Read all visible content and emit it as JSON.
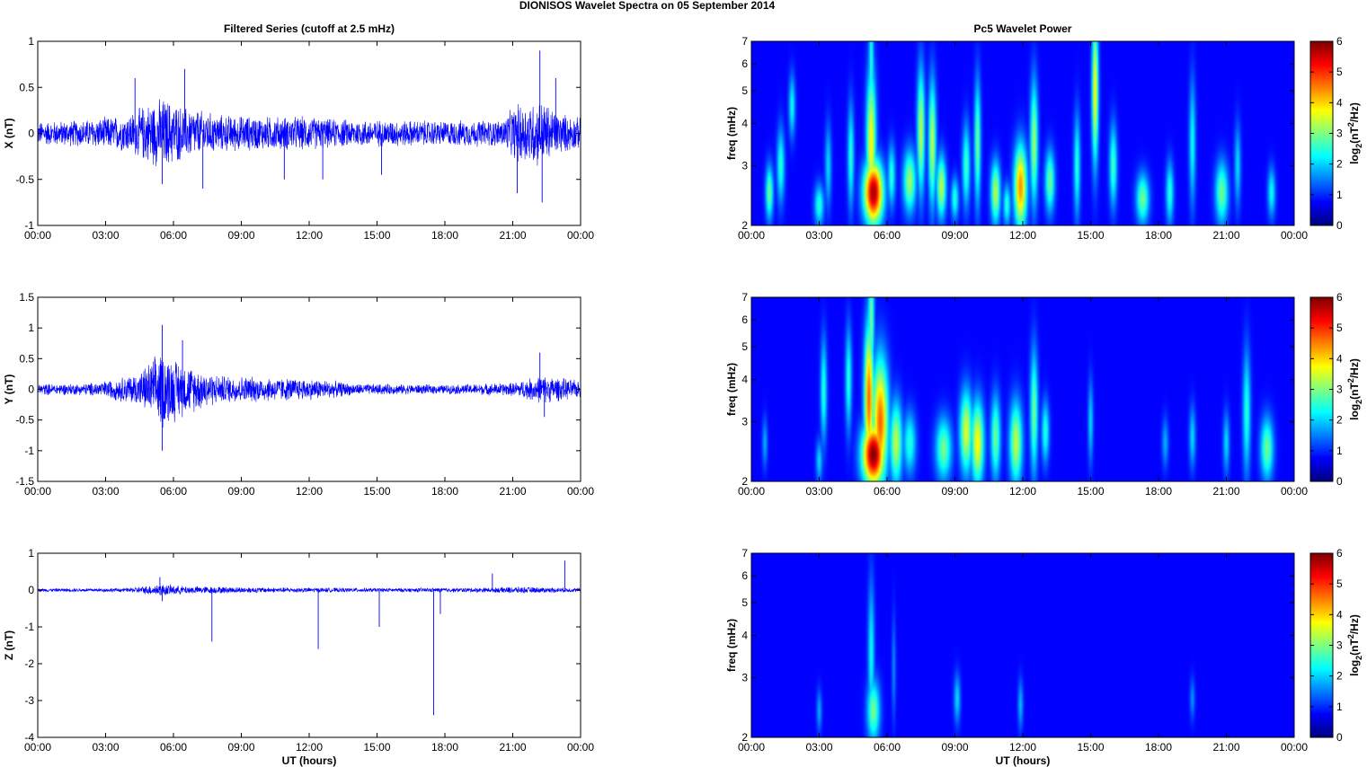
{
  "figure": {
    "title": "DIONISOS Wavelet Spectra on 05 September 2014",
    "left_column_title": "Filtered Series (cutoff at 2.5 mHz)",
    "right_column_title": "Pc5 Wavelet Power",
    "xlabel": "UT (hours)"
  },
  "chart_data": [
    {
      "type": "line",
      "name": "x-series",
      "ylabel": "X (nT)",
      "xlim": [
        0,
        24
      ],
      "ylim": [
        -1,
        1
      ],
      "xticks": [
        "00:00",
        "03:00",
        "06:00",
        "09:00",
        "12:00",
        "15:00",
        "18:00",
        "21:00",
        "00:00"
      ],
      "yticks": [
        -1,
        -0.5,
        0,
        0.5,
        1
      ],
      "color": "#0000ff",
      "envelope": [
        {
          "x": 0,
          "amp": 0.14
        },
        {
          "x": 2,
          "amp": 0.16
        },
        {
          "x": 4,
          "amp": 0.22
        },
        {
          "x": 5,
          "amp": 0.38
        },
        {
          "x": 5.6,
          "amp": 0.42
        },
        {
          "x": 6.3,
          "amp": 0.33
        },
        {
          "x": 8,
          "amp": 0.22
        },
        {
          "x": 10,
          "amp": 0.2
        },
        {
          "x": 12,
          "amp": 0.2
        },
        {
          "x": 13,
          "amp": 0.17
        },
        {
          "x": 15,
          "amp": 0.16
        },
        {
          "x": 18,
          "amp": 0.15
        },
        {
          "x": 20.5,
          "amp": 0.16
        },
        {
          "x": 21.2,
          "amp": 0.35
        },
        {
          "x": 22.3,
          "amp": 0.4
        },
        {
          "x": 23,
          "amp": 0.25
        },
        {
          "x": 24,
          "amp": 0.18
        }
      ],
      "spikes": [
        {
          "x": 4.3,
          "y": 0.6
        },
        {
          "x": 5.5,
          "y": -0.55
        },
        {
          "x": 6.5,
          "y": 0.7
        },
        {
          "x": 7.3,
          "y": -0.6
        },
        {
          "x": 10.9,
          "y": -0.5
        },
        {
          "x": 12.6,
          "y": -0.5
        },
        {
          "x": 15.2,
          "y": -0.45
        },
        {
          "x": 21.2,
          "y": -0.65
        },
        {
          "x": 22.2,
          "y": 0.9
        },
        {
          "x": 22.3,
          "y": -0.75
        },
        {
          "x": 22.9,
          "y": 0.6
        }
      ]
    },
    {
      "type": "line",
      "name": "y-series",
      "ylabel": "Y (nT)",
      "xlim": [
        0,
        24
      ],
      "ylim": [
        -1.5,
        1.5
      ],
      "xticks": [
        "00:00",
        "03:00",
        "06:00",
        "09:00",
        "12:00",
        "15:00",
        "18:00",
        "21:00",
        "00:00"
      ],
      "yticks": [
        -1.5,
        -1,
        -0.5,
        0,
        0.5,
        1,
        1.5
      ],
      "color": "#0000ff",
      "envelope": [
        {
          "x": 0,
          "amp": 0.1
        },
        {
          "x": 2,
          "amp": 0.1
        },
        {
          "x": 3,
          "amp": 0.15
        },
        {
          "x": 4.5,
          "amp": 0.3
        },
        {
          "x": 5.5,
          "amp": 0.7
        },
        {
          "x": 6.5,
          "amp": 0.45
        },
        {
          "x": 8,
          "amp": 0.25
        },
        {
          "x": 10,
          "amp": 0.22
        },
        {
          "x": 12.5,
          "amp": 0.18
        },
        {
          "x": 14,
          "amp": 0.1
        },
        {
          "x": 18,
          "amp": 0.08
        },
        {
          "x": 21,
          "amp": 0.12
        },
        {
          "x": 22.3,
          "amp": 0.25
        },
        {
          "x": 24,
          "amp": 0.15
        }
      ],
      "spikes": [
        {
          "x": 5.5,
          "y": 1.05
        },
        {
          "x": 5.5,
          "y": -1.0
        },
        {
          "x": 6.4,
          "y": 0.8
        },
        {
          "x": 22.2,
          "y": 0.6
        },
        {
          "x": 22.4,
          "y": -0.45
        }
      ]
    },
    {
      "type": "line",
      "name": "z-series",
      "ylabel": "Z (nT)",
      "xlim": [
        0,
        24
      ],
      "ylim": [
        -4,
        1
      ],
      "xticks": [
        "00:00",
        "03:00",
        "06:00",
        "09:00",
        "12:00",
        "15:00",
        "18:00",
        "21:00",
        "00:00"
      ],
      "yticks": [
        -4,
        -3,
        -2,
        -1,
        0,
        1
      ],
      "color": "#0000ff",
      "envelope": [
        {
          "x": 0,
          "amp": 0.05
        },
        {
          "x": 4,
          "amp": 0.06
        },
        {
          "x": 5.4,
          "amp": 0.18
        },
        {
          "x": 6.5,
          "amp": 0.12
        },
        {
          "x": 10,
          "amp": 0.08
        },
        {
          "x": 15,
          "amp": 0.06
        },
        {
          "x": 20,
          "amp": 0.07
        },
        {
          "x": 21,
          "amp": 0.1
        },
        {
          "x": 24,
          "amp": 0.06
        }
      ],
      "spikes": [
        {
          "x": 5.4,
          "y": 0.35
        },
        {
          "x": 5.5,
          "y": -0.3
        },
        {
          "x": 7.7,
          "y": -1.4
        },
        {
          "x": 12.4,
          "y": -1.6
        },
        {
          "x": 15.1,
          "y": -1.0
        },
        {
          "x": 17.5,
          "y": -3.4
        },
        {
          "x": 17.8,
          "y": -0.65
        },
        {
          "x": 20.1,
          "y": 0.45
        },
        {
          "x": 23.3,
          "y": 0.8
        }
      ]
    },
    {
      "type": "heatmap",
      "name": "x-wavelet",
      "ylabel": "freq (mHz)",
      "xlim": [
        0,
        24
      ],
      "ylim": [
        2,
        7
      ],
      "yscale": "log",
      "xticks": [
        "00:00",
        "03:00",
        "06:00",
        "09:00",
        "12:00",
        "15:00",
        "18:00",
        "21:00",
        "00:00"
      ],
      "yticks": [
        2,
        3,
        4,
        5,
        6,
        7
      ],
      "colorbar": {
        "label": "log2(nT^2/Hz)",
        "range": [
          0,
          6
        ],
        "ticks": [
          0,
          1,
          2,
          3,
          4,
          5,
          6
        ],
        "colormap": "jet"
      },
      "blobs": [
        {
          "t": 0.8,
          "f": 2.5,
          "w": 0.12,
          "h": 0.13,
          "p": 2.5
        },
        {
          "t": 1.3,
          "f": 3.0,
          "w": 0.12,
          "h": 0.18,
          "p": 2.0
        },
        {
          "t": 1.8,
          "f": 4.5,
          "w": 0.1,
          "h": 0.15,
          "p": 1.8
        },
        {
          "t": 3.0,
          "f": 2.3,
          "w": 0.15,
          "h": 0.1,
          "p": 2.0
        },
        {
          "t": 3.4,
          "f": 3.0,
          "w": 0.1,
          "h": 0.2,
          "p": 1.5
        },
        {
          "t": 4.4,
          "f": 3.2,
          "w": 0.1,
          "h": 0.25,
          "p": 2.0
        },
        {
          "t": 5.4,
          "f": 2.5,
          "w": 0.3,
          "h": 0.15,
          "p": 5.8
        },
        {
          "t": 5.3,
          "f": 3.5,
          "w": 0.15,
          "h": 0.35,
          "p": 3.5
        },
        {
          "t": 5.3,
          "f": 6.0,
          "w": 0.08,
          "h": 0.3,
          "p": 2.0
        },
        {
          "t": 6.2,
          "f": 2.8,
          "w": 0.12,
          "h": 0.15,
          "p": 2.0
        },
        {
          "t": 7.0,
          "f": 2.7,
          "w": 0.2,
          "h": 0.15,
          "p": 2.8
        },
        {
          "t": 7.5,
          "f": 3.8,
          "w": 0.12,
          "h": 0.3,
          "p": 3.0
        },
        {
          "t": 8.0,
          "f": 3.5,
          "w": 0.12,
          "h": 0.3,
          "p": 3.0
        },
        {
          "t": 8.4,
          "f": 2.6,
          "w": 0.15,
          "h": 0.15,
          "p": 3.0
        },
        {
          "t": 9.0,
          "f": 2.4,
          "w": 0.12,
          "h": 0.1,
          "p": 2.0
        },
        {
          "t": 9.5,
          "f": 3.0,
          "w": 0.12,
          "h": 0.2,
          "p": 2.2
        },
        {
          "t": 10.0,
          "f": 3.5,
          "w": 0.1,
          "h": 0.3,
          "p": 2.5
        },
        {
          "t": 10.8,
          "f": 2.5,
          "w": 0.15,
          "h": 0.15,
          "p": 3.0
        },
        {
          "t": 11.3,
          "f": 2.3,
          "w": 0.12,
          "h": 0.1,
          "p": 2.0
        },
        {
          "t": 11.9,
          "f": 2.6,
          "w": 0.2,
          "h": 0.2,
          "p": 4.2
        },
        {
          "t": 12.5,
          "f": 3.5,
          "w": 0.12,
          "h": 0.3,
          "p": 2.8
        },
        {
          "t": 13.2,
          "f": 2.7,
          "w": 0.15,
          "h": 0.15,
          "p": 2.5
        },
        {
          "t": 14.4,
          "f": 3.0,
          "w": 0.1,
          "h": 0.25,
          "p": 2.0
        },
        {
          "t": 15.2,
          "f": 5.0,
          "w": 0.1,
          "h": 0.35,
          "p": 3.5
        },
        {
          "t": 16.0,
          "f": 3.0,
          "w": 0.12,
          "h": 0.2,
          "p": 2.2
        },
        {
          "t": 17.3,
          "f": 2.4,
          "w": 0.2,
          "h": 0.12,
          "p": 2.5
        },
        {
          "t": 18.5,
          "f": 2.5,
          "w": 0.12,
          "h": 0.15,
          "p": 2.0
        },
        {
          "t": 19.5,
          "f": 3.5,
          "w": 0.1,
          "h": 0.3,
          "p": 1.8
        },
        {
          "t": 20.8,
          "f": 2.5,
          "w": 0.2,
          "h": 0.15,
          "p": 2.5
        },
        {
          "t": 21.5,
          "f": 3.0,
          "w": 0.1,
          "h": 0.2,
          "p": 1.5
        },
        {
          "t": 23.0,
          "f": 2.5,
          "w": 0.12,
          "h": 0.12,
          "p": 1.8
        }
      ]
    },
    {
      "type": "heatmap",
      "name": "y-wavelet",
      "ylabel": "freq (mHz)",
      "xlim": [
        0,
        24
      ],
      "ylim": [
        2,
        7
      ],
      "yscale": "log",
      "xticks": [
        "00:00",
        "03:00",
        "06:00",
        "09:00",
        "12:00",
        "15:00",
        "18:00",
        "21:00",
        "00:00"
      ],
      "yticks": [
        2,
        3,
        4,
        5,
        6,
        7
      ],
      "colorbar": {
        "label": "log2(nT^2/Hz)",
        "range": [
          0,
          6
        ],
        "ticks": [
          0,
          1,
          2,
          3,
          4,
          5,
          6
        ],
        "colormap": "jet"
      },
      "blobs": [
        {
          "t": 0.6,
          "f": 2.6,
          "w": 0.08,
          "h": 0.12,
          "p": 1.2
        },
        {
          "t": 3.0,
          "f": 2.3,
          "w": 0.1,
          "h": 0.1,
          "p": 1.5
        },
        {
          "t": 3.2,
          "f": 3.7,
          "w": 0.1,
          "h": 0.25,
          "p": 2.0
        },
        {
          "t": 4.3,
          "f": 4.0,
          "w": 0.1,
          "h": 0.25,
          "p": 2.0
        },
        {
          "t": 5.4,
          "f": 2.4,
          "w": 0.35,
          "h": 0.15,
          "p": 6.0
        },
        {
          "t": 5.2,
          "f": 3.5,
          "w": 0.15,
          "h": 0.35,
          "p": 4.5
        },
        {
          "t": 5.7,
          "f": 3.0,
          "w": 0.25,
          "h": 0.3,
          "p": 4.5
        },
        {
          "t": 5.3,
          "f": 6.0,
          "w": 0.1,
          "h": 0.3,
          "p": 2.5
        },
        {
          "t": 6.4,
          "f": 2.6,
          "w": 0.2,
          "h": 0.2,
          "p": 3.0
        },
        {
          "t": 7.0,
          "f": 2.6,
          "w": 0.2,
          "h": 0.15,
          "p": 2.0
        },
        {
          "t": 8.5,
          "f": 2.5,
          "w": 0.25,
          "h": 0.15,
          "p": 2.5
        },
        {
          "t": 9.5,
          "f": 2.8,
          "w": 0.2,
          "h": 0.2,
          "p": 3.2
        },
        {
          "t": 10.0,
          "f": 2.6,
          "w": 0.2,
          "h": 0.2,
          "p": 3.5
        },
        {
          "t": 10.8,
          "f": 2.7,
          "w": 0.15,
          "h": 0.2,
          "p": 2.5
        },
        {
          "t": 11.7,
          "f": 2.6,
          "w": 0.2,
          "h": 0.2,
          "p": 3.0
        },
        {
          "t": 12.5,
          "f": 3.2,
          "w": 0.12,
          "h": 0.3,
          "p": 2.5
        },
        {
          "t": 13.0,
          "f": 2.8,
          "w": 0.12,
          "h": 0.15,
          "p": 2.0
        },
        {
          "t": 15.0,
          "f": 3.0,
          "w": 0.08,
          "h": 0.2,
          "p": 1.5
        },
        {
          "t": 18.3,
          "f": 2.6,
          "w": 0.1,
          "h": 0.12,
          "p": 1.2
        },
        {
          "t": 19.5,
          "f": 2.7,
          "w": 0.1,
          "h": 0.15,
          "p": 1.5
        },
        {
          "t": 21.0,
          "f": 2.6,
          "w": 0.1,
          "h": 0.15,
          "p": 1.5
        },
        {
          "t": 21.9,
          "f": 3.2,
          "w": 0.12,
          "h": 0.3,
          "p": 2.0
        },
        {
          "t": 22.8,
          "f": 2.5,
          "w": 0.2,
          "h": 0.15,
          "p": 2.5
        }
      ]
    },
    {
      "type": "heatmap",
      "name": "z-wavelet",
      "ylabel": "freq (mHz)",
      "xlim": [
        0,
        24
      ],
      "ylim": [
        2,
        7
      ],
      "yscale": "log",
      "xticks": [
        "00:00",
        "03:00",
        "06:00",
        "09:00",
        "12:00",
        "15:00",
        "18:00",
        "21:00",
        "00:00"
      ],
      "yticks": [
        2,
        3,
        4,
        5,
        6,
        7
      ],
      "colorbar": {
        "label": "log2(nT^2/Hz)",
        "range": [
          0,
          6
        ],
        "ticks": [
          0,
          1,
          2,
          3,
          4,
          5,
          6
        ],
        "colormap": "jet"
      },
      "blobs": [
        {
          "t": 3.0,
          "f": 2.4,
          "w": 0.08,
          "h": 0.1,
          "p": 1.2
        },
        {
          "t": 5.4,
          "f": 2.4,
          "w": 0.2,
          "h": 0.15,
          "p": 2.5
        },
        {
          "t": 5.3,
          "f": 3.5,
          "w": 0.1,
          "h": 0.35,
          "p": 1.8
        },
        {
          "t": 6.3,
          "f": 3.2,
          "w": 0.06,
          "h": 0.25,
          "p": 1.0
        },
        {
          "t": 9.1,
          "f": 2.6,
          "w": 0.1,
          "h": 0.12,
          "p": 1.5
        },
        {
          "t": 11.9,
          "f": 2.5,
          "w": 0.08,
          "h": 0.12,
          "p": 1.3
        },
        {
          "t": 19.5,
          "f": 2.6,
          "w": 0.08,
          "h": 0.1,
          "p": 1.0
        }
      ]
    }
  ]
}
